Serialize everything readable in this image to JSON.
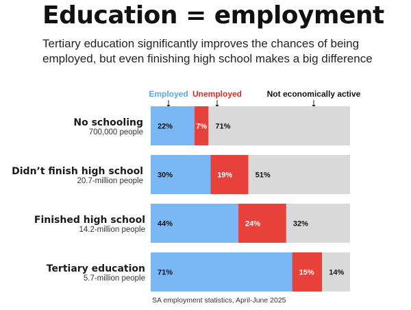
{
  "title": "Education = employment",
  "subtitle": "Tertiary education significantly improves the chances of being employed, but even finishing high school makes a big difference",
  "source": "SA employment statistics, April-June 2025",
  "colors": {
    "employed": "#7ab8f5",
    "unemployed": "#e8413c",
    "inactive": "#d9d9d9",
    "employed_label": "#5aa6ee",
    "unemployed_label": "#e0261f",
    "inactive_label": "#111111"
  },
  "chart_data": {
    "type": "bar",
    "orientation": "horizontal",
    "stacked": true,
    "xlim": [
      0,
      100
    ],
    "value_unit": "%",
    "legend_placement": "top",
    "grid": false,
    "categories": [
      {
        "name": "No schooling",
        "subtitle": "700,000 people"
      },
      {
        "name": "Didn’t finish high school",
        "subtitle": "20.7-million people"
      },
      {
        "name": "Finished high school",
        "subtitle": "14.2-million people"
      },
      {
        "name": "Tertiary education",
        "subtitle": "5.7-million people"
      }
    ],
    "series": [
      {
        "name": "Employed",
        "color": "#7ab8f5",
        "values": [
          22,
          30,
          44,
          71
        ]
      },
      {
        "name": "Unemployed",
        "color": "#e8413c",
        "values": [
          7,
          19,
          24,
          15
        ]
      },
      {
        "name": "Not economically active",
        "color": "#d9d9d9",
        "values": [
          71,
          51,
          32,
          14
        ]
      }
    ]
  }
}
